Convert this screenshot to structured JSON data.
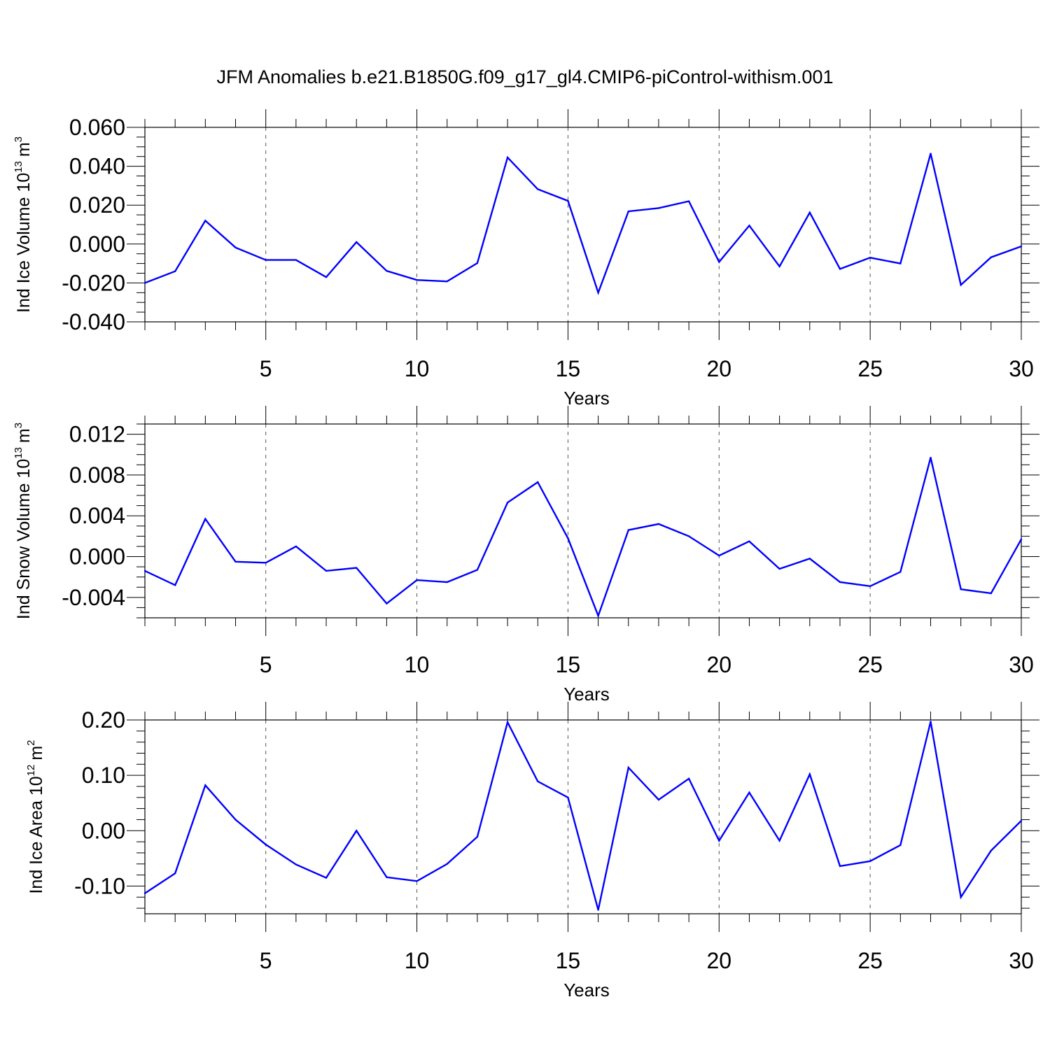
{
  "title": "JFM Anomalies b.e21.B1850G.f09_g17_gl4.CMIP6-piControl-withism.001",
  "colors": {
    "line": "#0000ff",
    "axis": "#000000",
    "grid": "#555555"
  },
  "chart_data": [
    {
      "type": "line",
      "ylabel": {
        "text": "Ind Ice Volume 10",
        "exp": "13",
        "unit": "m",
        "unit_exp": "3"
      },
      "xlabel": "Years",
      "xlim": [
        1,
        30
      ],
      "ylim": [
        -0.04,
        0.06
      ],
      "yticks": [
        -0.04,
        -0.02,
        0.0,
        0.02,
        0.04,
        0.06
      ],
      "ytick_labels": [
        "-0.040",
        "-0.020",
        "0.000",
        "0.020",
        "0.040",
        "0.060"
      ],
      "yminor_step": 0.005,
      "xticks": [
        5,
        10,
        15,
        20,
        25,
        30
      ],
      "xtick_labels": [
        "5",
        "10",
        "15",
        "20",
        "25",
        "30"
      ],
      "x": [
        1,
        2,
        3,
        4,
        5,
        6,
        7,
        8,
        9,
        10,
        11,
        12,
        13,
        14,
        15,
        16,
        17,
        18,
        19,
        20,
        21,
        22,
        23,
        24,
        25,
        26,
        27,
        28,
        29,
        30
      ],
      "values": [
        -0.02,
        -0.014,
        0.012,
        -0.0018,
        -0.0082,
        -0.0082,
        -0.017,
        0.001,
        -0.0138,
        -0.0185,
        -0.0192,
        -0.0098,
        0.0445,
        0.0282,
        0.0222,
        -0.025,
        0.0168,
        0.0185,
        0.022,
        -0.0092,
        0.0095,
        -0.0115,
        0.0162,
        -0.0128,
        -0.007,
        -0.01,
        0.0465,
        -0.021,
        -0.0068,
        -0.0012
      ]
    },
    {
      "type": "line",
      "ylabel": {
        "text": "Ind Snow Volume 10",
        "exp": "13",
        "unit": "m",
        "unit_exp": "3"
      },
      "xlabel": "Years",
      "xlim": [
        1,
        30
      ],
      "ylim": [
        -0.006,
        0.013
      ],
      "yticks": [
        -0.004,
        0.0,
        0.004,
        0.008,
        0.012
      ],
      "ytick_labels": [
        "-0.004",
        "0.000",
        "0.004",
        "0.008",
        "0.012"
      ],
      "yminor_step": 0.001,
      "xticks": [
        5,
        10,
        15,
        20,
        25,
        30
      ],
      "xtick_labels": [
        "5",
        "10",
        "15",
        "20",
        "25",
        "30"
      ],
      "x": [
        1,
        2,
        3,
        4,
        5,
        6,
        7,
        8,
        9,
        10,
        11,
        12,
        13,
        14,
        15,
        16,
        17,
        18,
        19,
        20,
        21,
        22,
        23,
        24,
        25,
        26,
        27,
        28,
        29,
        30
      ],
      "values": [
        -0.0014,
        -0.0028,
        0.0037,
        -0.0005,
        -0.0006,
        0.001,
        -0.0014,
        -0.0011,
        -0.0046,
        -0.0023,
        -0.0025,
        -0.0013,
        0.0053,
        0.0073,
        0.0018,
        -0.0058,
        0.0026,
        0.0032,
        0.002,
        0.0001,
        0.0015,
        -0.0012,
        -0.0002,
        -0.0025,
        -0.0029,
        -0.0015,
        0.0097,
        -0.0032,
        -0.0036,
        0.0017
      ]
    },
    {
      "type": "line",
      "ylabel": {
        "text": "Ind Ice Area 10",
        "exp": "12",
        "unit": "m",
        "unit_exp": "2"
      },
      "xlabel": "Years",
      "xlim": [
        1,
        30
      ],
      "ylim": [
        -0.15,
        0.2
      ],
      "yticks": [
        -0.1,
        0.0,
        0.1,
        0.2
      ],
      "ytick_labels": [
        "-0.10",
        "0.00",
        "0.10",
        "0.20"
      ],
      "yminor_step": 0.02,
      "xticks": [
        5,
        10,
        15,
        20,
        25,
        30
      ],
      "xtick_labels": [
        "5",
        "10",
        "15",
        "20",
        "25",
        "30"
      ],
      "x": [
        1,
        2,
        3,
        4,
        5,
        6,
        7,
        8,
        9,
        10,
        11,
        12,
        13,
        14,
        15,
        16,
        17,
        18,
        19,
        20,
        21,
        22,
        23,
        24,
        25,
        26,
        27,
        28,
        29,
        30
      ],
      "values": [
        -0.113,
        -0.077,
        0.082,
        0.02,
        -0.025,
        -0.061,
        -0.085,
        0.0,
        -0.084,
        -0.091,
        -0.06,
        -0.011,
        0.196,
        0.089,
        0.06,
        -0.143,
        0.114,
        0.056,
        0.094,
        -0.018,
        0.069,
        -0.018,
        0.102,
        -0.064,
        -0.055,
        -0.026,
        0.197,
        -0.12,
        -0.036,
        0.018
      ]
    }
  ]
}
